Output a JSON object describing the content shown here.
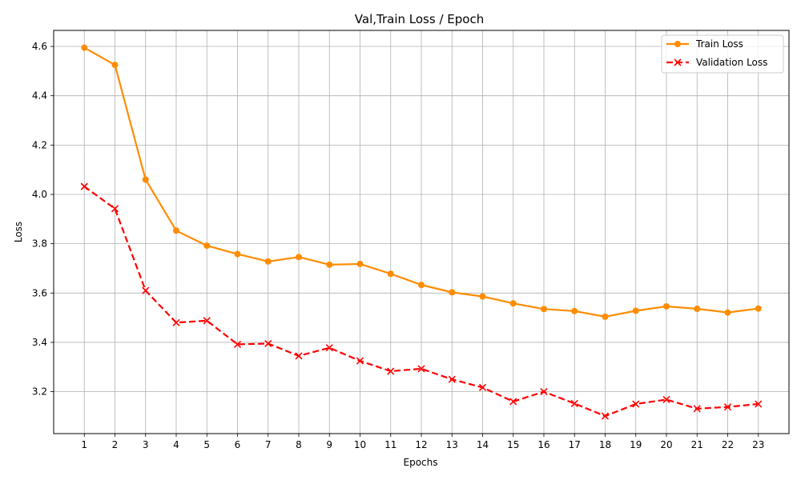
{
  "chart_data": {
    "type": "line",
    "title": "Val,Train Loss / Epoch",
    "xlabel": "Epochs",
    "ylabel": "Loss",
    "x": [
      1,
      2,
      3,
      4,
      5,
      6,
      7,
      8,
      9,
      10,
      11,
      12,
      13,
      14,
      15,
      16,
      17,
      18,
      19,
      20,
      21,
      22,
      23
    ],
    "x_tick_labels": [
      "1",
      "2",
      "3",
      "4",
      "5",
      "6",
      "7",
      "8",
      "9",
      "10",
      "11",
      "12",
      "13",
      "14",
      "15",
      "16",
      "17",
      "18",
      "19",
      "20",
      "21",
      "22",
      "23"
    ],
    "ylim": [
      3.03,
      4.665
    ],
    "y_ticks": [
      3.2,
      3.4,
      3.6,
      3.8,
      4.0,
      4.2,
      4.4,
      4.6
    ],
    "y_tick_labels": [
      "3.2",
      "3.4",
      "3.6",
      "3.8",
      "4.0",
      "4.2",
      "4.4",
      "4.6"
    ],
    "grid": true,
    "legend_position": "top-right",
    "series": [
      {
        "name": "Train Loss",
        "color": "#ff8c00",
        "line_style": "solid",
        "marker": "circle",
        "values": [
          4.595,
          4.525,
          4.06,
          3.853,
          3.792,
          3.758,
          3.728,
          3.746,
          3.715,
          3.718,
          3.678,
          3.633,
          3.603,
          3.586,
          3.558,
          3.535,
          3.527,
          3.504,
          3.528,
          3.546,
          3.536,
          3.521,
          3.537
        ]
      },
      {
        "name": "Validation Loss",
        "color": "#ff0000",
        "line_style": "dashed",
        "marker": "x",
        "values": [
          4.032,
          3.942,
          3.61,
          3.48,
          3.488,
          3.392,
          3.395,
          3.345,
          3.378,
          3.325,
          3.283,
          3.293,
          3.25,
          3.217,
          3.16,
          3.2,
          3.152,
          3.101,
          3.15,
          3.168,
          3.131,
          3.138,
          3.15
        ]
      }
    ]
  }
}
